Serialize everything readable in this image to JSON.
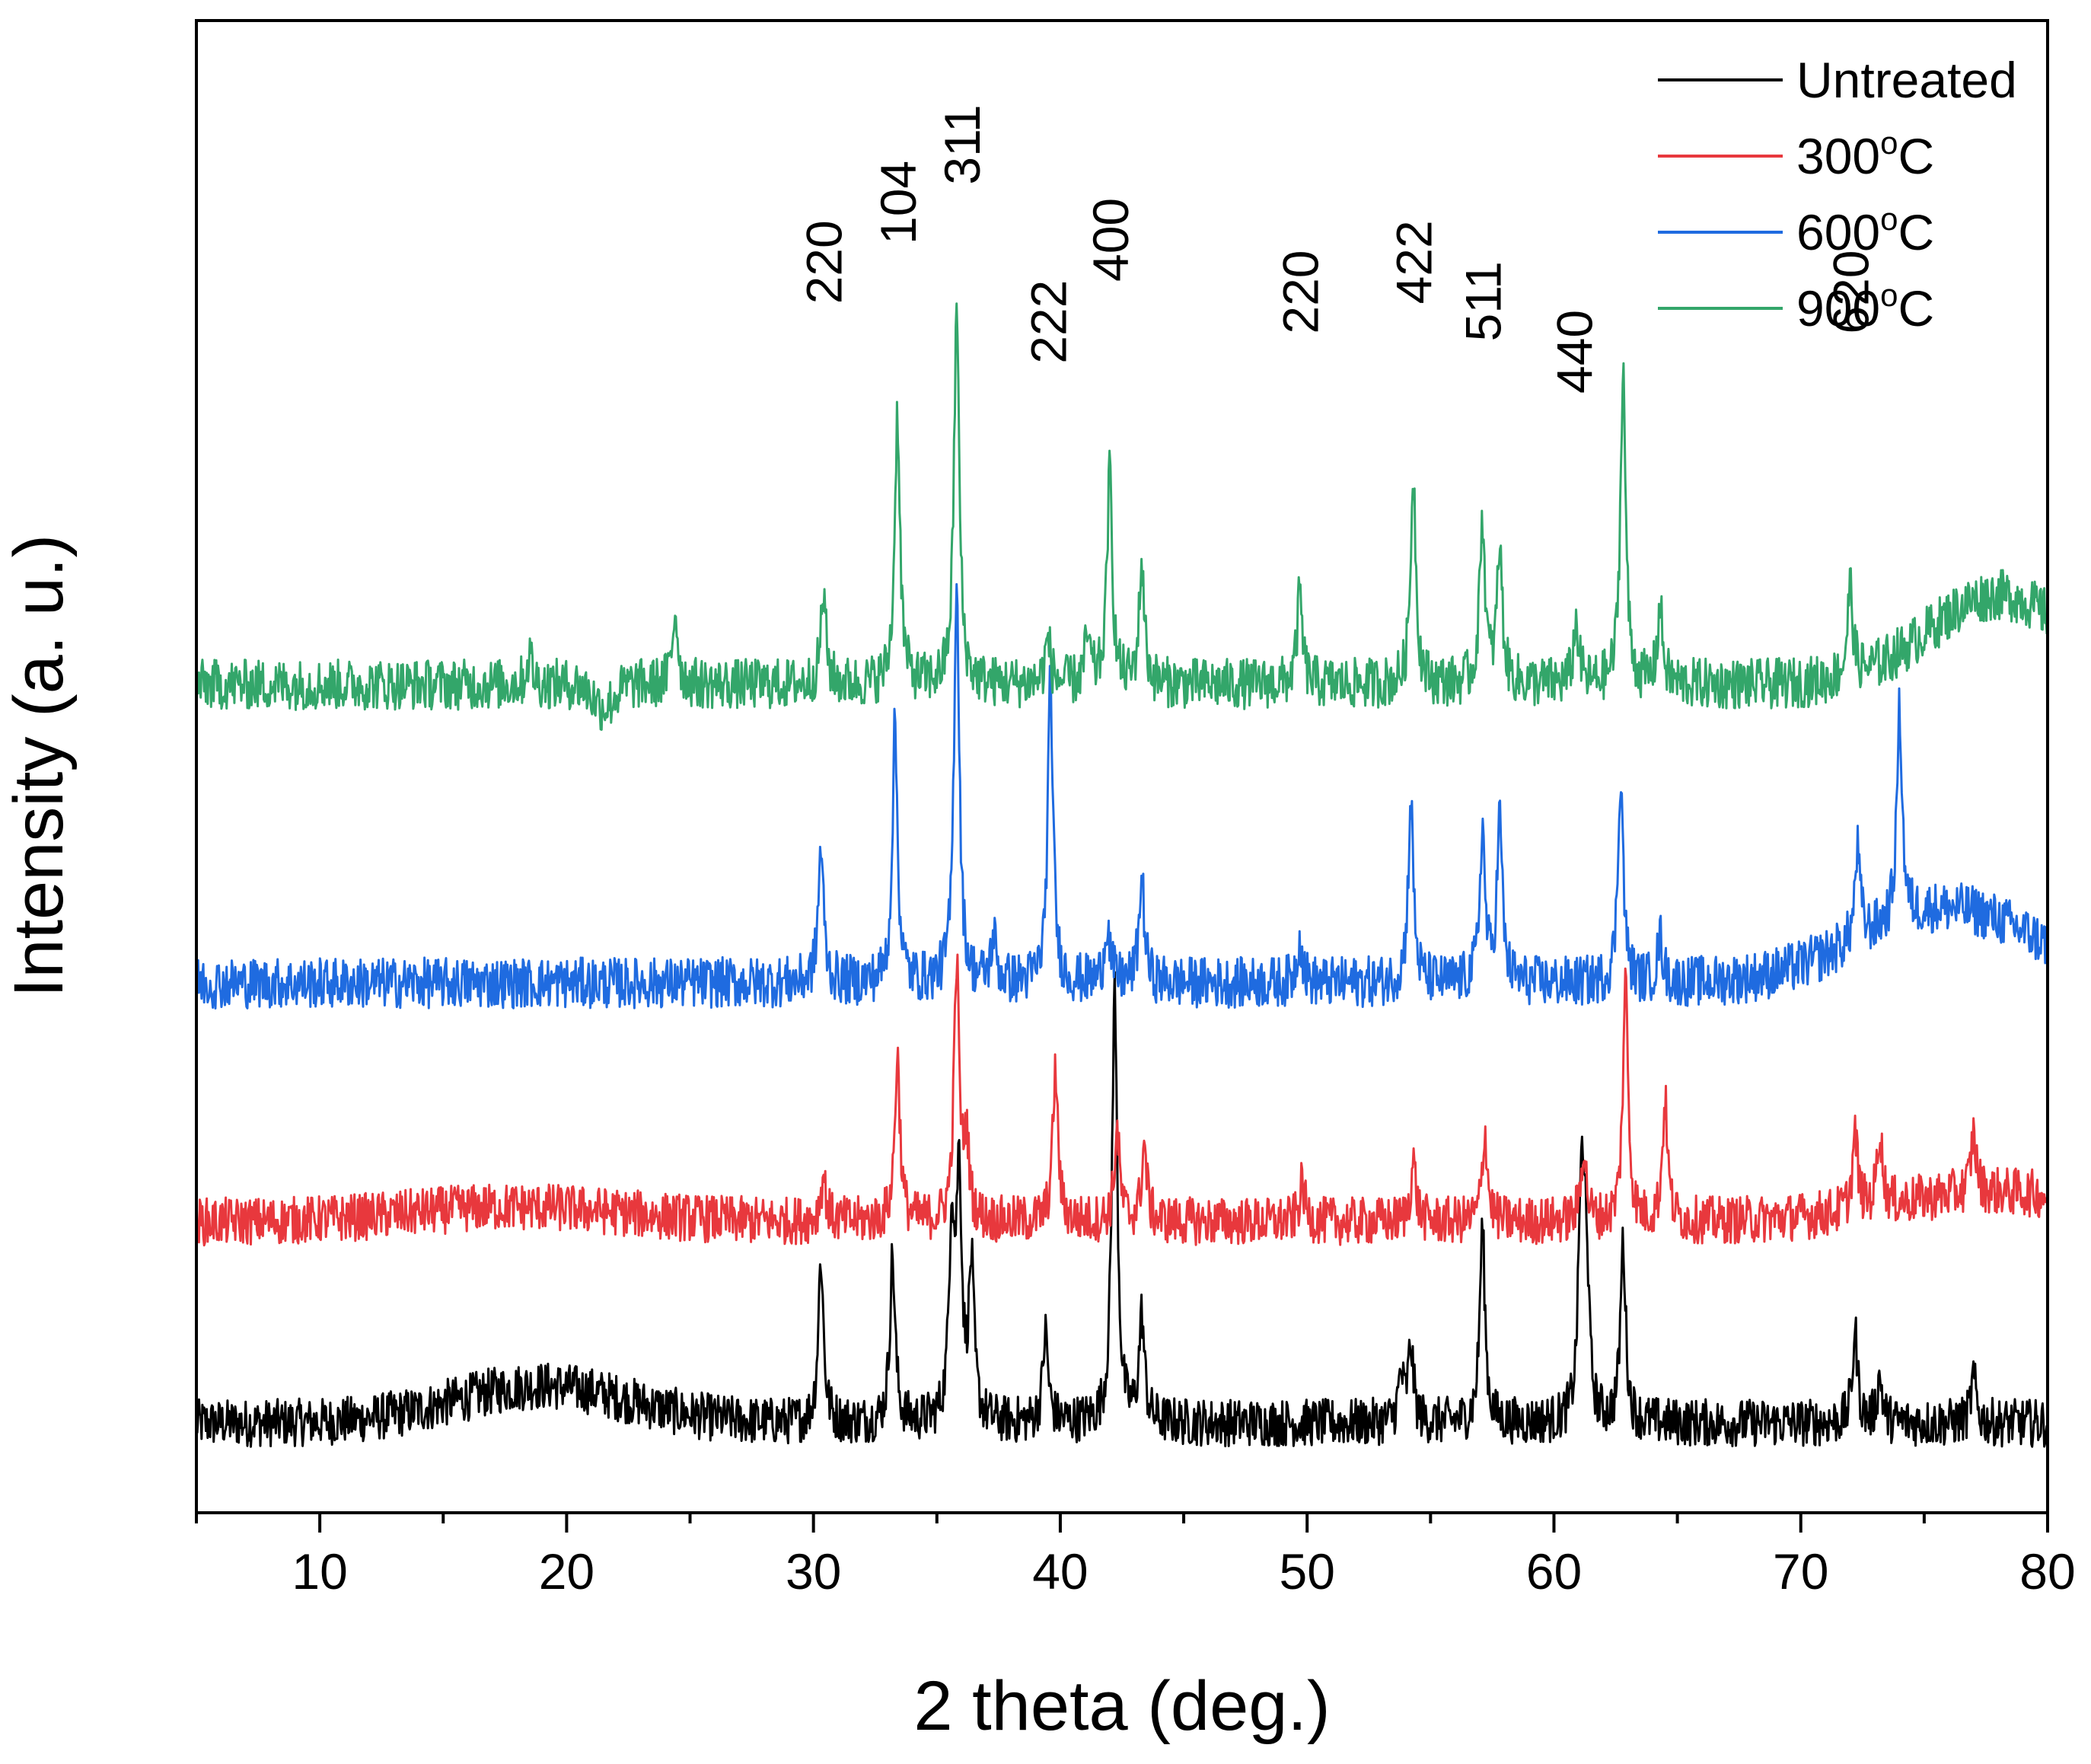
{
  "chart_data": {
    "type": "line",
    "title": "",
    "xlabel": "2 theta (deg.)",
    "ylabel": "Intensity (a. u.)",
    "xlim": [
      5,
      80
    ],
    "ylim": [
      0,
      100
    ],
    "y_ticks_shown": false,
    "x_ticks": [
      10,
      20,
      30,
      40,
      50,
      60,
      70,
      80
    ],
    "x_tick_labels": [
      "10",
      "20",
      "30",
      "40",
      "50",
      "60",
      "70",
      "80"
    ],
    "legend_position": "top-right",
    "series": [
      {
        "name": "Untreated",
        "color": "#000000",
        "offset": 3,
        "baseline": 3,
        "noise": 1.6,
        "humps": [
          {
            "center": 19,
            "width": 5,
            "height": 2.5
          }
        ],
        "peaks": [
          [
            30.3,
            11
          ],
          [
            33.2,
            11
          ],
          [
            35.6,
            13
          ],
          [
            35.9,
            16
          ],
          [
            36.4,
            10
          ],
          [
            39.4,
            6
          ],
          [
            42.2,
            29
          ],
          [
            43.3,
            7
          ],
          [
            53.8,
            3
          ],
          [
            54.2,
            5
          ],
          [
            57.1,
            13
          ],
          [
            61.1,
            15
          ],
          [
            61.3,
            11
          ],
          [
            62.8,
            12
          ],
          [
            72.2,
            6
          ],
          [
            73.2,
            3
          ],
          [
            77,
            3
          ]
        ]
      },
      {
        "name": "300°C",
        "color": "#E8383D",
        "offset": 18,
        "baseline": 1.5,
        "noise": 1.6,
        "humps": [
          {
            "center": 18,
            "width": 6,
            "height": 1
          },
          {
            "center": 78,
            "width": 6,
            "height": 2
          }
        ],
        "peaks": [
          [
            30.4,
            3
          ],
          [
            33.4,
            11
          ],
          [
            35.8,
            17
          ],
          [
            36.2,
            5
          ],
          [
            39.8,
            10
          ],
          [
            42.3,
            6
          ],
          [
            43.4,
            5
          ],
          [
            49.8,
            2.5
          ],
          [
            54.3,
            4
          ],
          [
            57.2,
            6
          ],
          [
            61.2,
            5
          ],
          [
            62.9,
            16
          ],
          [
            64.5,
            8
          ],
          [
            72.2,
            5
          ],
          [
            73.2,
            5
          ],
          [
            77,
            4
          ]
        ]
      },
      {
        "name": "600°C",
        "color": "#1F6BE0",
        "offset": 34,
        "baseline": 1.5,
        "noise": 1.7,
        "humps": [
          {
            "center": 76,
            "width": 5,
            "height": 5
          }
        ],
        "peaks": [
          [
            30.3,
            9
          ],
          [
            33.3,
            17
          ],
          [
            35.8,
            27
          ],
          [
            37.3,
            3
          ],
          [
            39.6,
            20
          ],
          [
            41.9,
            4
          ],
          [
            43.3,
            7
          ],
          [
            49.7,
            3
          ],
          [
            54.2,
            12
          ],
          [
            57.1,
            10
          ],
          [
            57.8,
            11
          ],
          [
            62.7,
            14
          ],
          [
            64.3,
            3
          ],
          [
            72.3,
            6
          ],
          [
            74,
            14
          ]
        ]
      },
      {
        "name": "900°C",
        "color": "#33A66A",
        "offset": 54,
        "baseline": 1.5,
        "noise": 1.7,
        "dip": {
          "center": 21.5,
          "width": 0.6,
          "depth": 1.5
        },
        "humps": [
          {
            "center": 78,
            "width": 4,
            "height": 6
          }
        ],
        "peaks": [
          [
            18.5,
            2
          ],
          [
            24.4,
            5
          ],
          [
            30.4,
            6
          ],
          [
            33.4,
            18
          ],
          [
            35.8,
            25
          ],
          [
            39.5,
            3
          ],
          [
            41.1,
            3
          ],
          [
            42,
            14
          ],
          [
            43.3,
            8
          ],
          [
            49.7,
            6
          ],
          [
            54.3,
            14
          ],
          [
            57.1,
            11
          ],
          [
            57.8,
            9
          ],
          [
            60.9,
            4
          ],
          [
            62.8,
            21
          ],
          [
            64.3,
            5
          ],
          [
            72,
            6
          ]
        ]
      }
    ],
    "annotations": [
      {
        "text": "220",
        "x": 30.4,
        "y": 81
      },
      {
        "text": "104",
        "x": 33.4,
        "y": 85
      },
      {
        "text": "311",
        "x": 36.0,
        "y": 89
      },
      {
        "text": "222",
        "x": 39.5,
        "y": 77
      },
      {
        "text": "400",
        "x": 42.0,
        "y": 82.5
      },
      {
        "text": "220",
        "x": 49.7,
        "y": 79
      },
      {
        "text": "422",
        "x": 54.3,
        "y": 81
      },
      {
        "text": "511",
        "x": 57.1,
        "y": 78.5
      },
      {
        "text": "440",
        "x": 60.8,
        "y": 75
      },
      {
        "text": "620",
        "x": 72.0,
        "y": 79
      }
    ]
  }
}
